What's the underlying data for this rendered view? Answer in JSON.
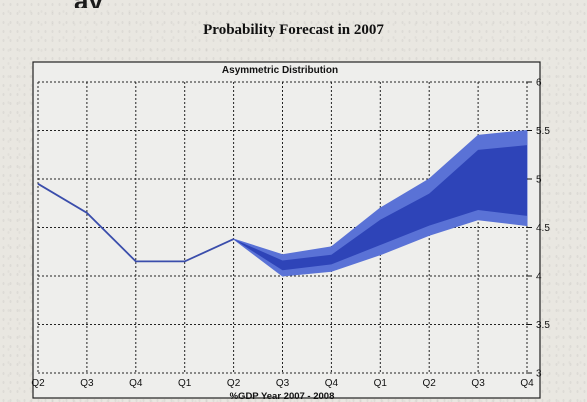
{
  "page": {
    "title": "Probability Forecast in 2007"
  },
  "chart_data": {
    "type": "area",
    "title": "Asymmetric Distribution",
    "xlabel": "%GDP Year 2007 - 2008",
    "ylabel": "",
    "categories": [
      "Q2",
      "Q3",
      "Q4",
      "Q1",
      "Q2",
      "Q3",
      "Q4",
      "Q1",
      "Q2",
      "Q3",
      "Q4"
    ],
    "ylim": [
      3,
      6
    ],
    "yticks": [
      "6",
      "5.5",
      "5",
      "4.5",
      "4",
      "3.5",
      "3"
    ],
    "y_axis_position": "right",
    "grid": true,
    "colors": {
      "line": "#3a4dab",
      "fan_outer": "#5a72d6",
      "fan_inner": "#2e44b8",
      "grid": "#222222"
    },
    "series": [
      {
        "values": [
          4.95,
          4.65,
          4.15,
          4.15,
          4.38,
          null,
          null,
          null,
          null,
          null,
          null
        ]
      }
    ],
    "fan_band": {
      "start_index": 4,
      "upper": [
        4.38,
        4.22,
        4.3,
        4.7,
        5.0,
        5.45,
        5.5
      ],
      "lower": [
        4.38,
        4.0,
        4.05,
        4.22,
        4.42,
        4.58,
        4.52
      ],
      "inner_upper": [
        4.38,
        4.16,
        4.22,
        4.58,
        4.85,
        5.3,
        5.35
      ],
      "inner_lower": [
        4.38,
        4.06,
        4.12,
        4.32,
        4.52,
        4.68,
        4.62
      ]
    }
  }
}
